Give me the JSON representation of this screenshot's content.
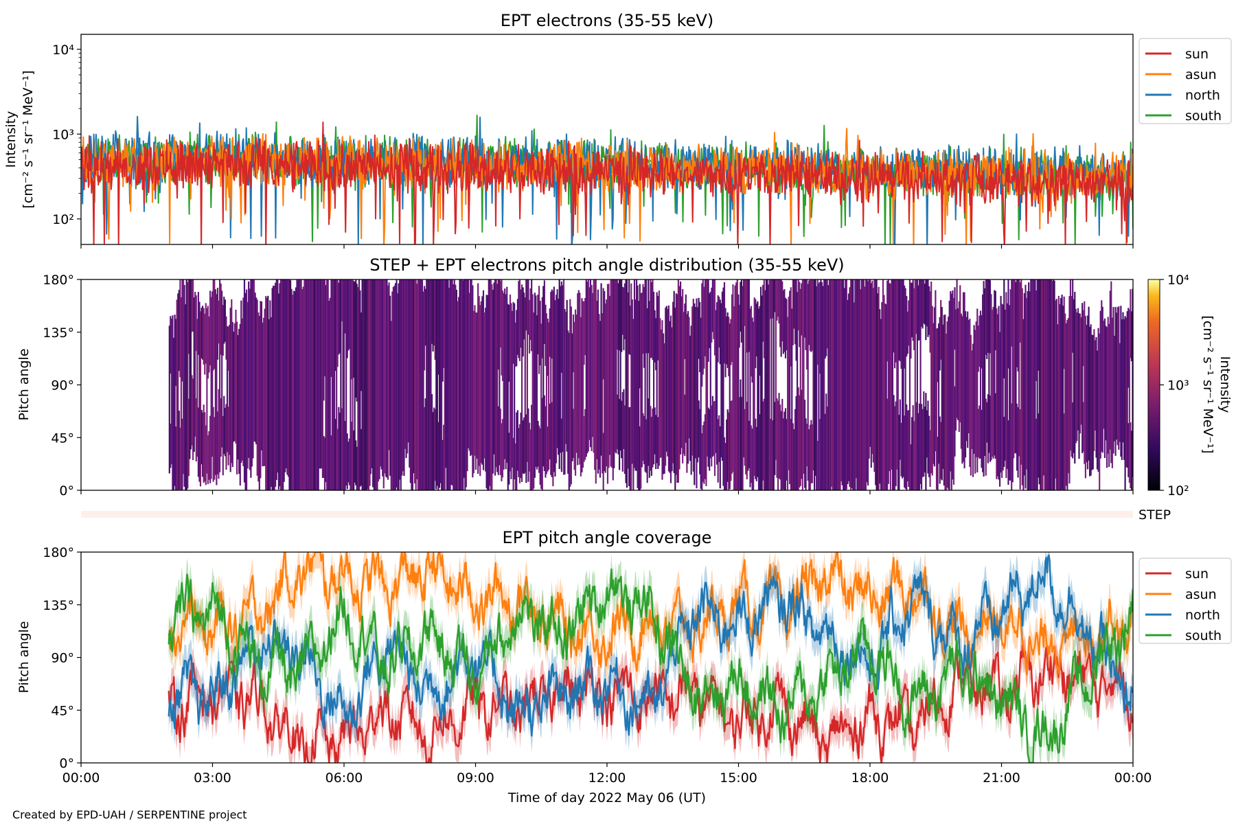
{
  "chart_data": [
    {
      "type": "line",
      "title": "EPT electrons (35-55 keV)",
      "ylabel_line1": "Intensity",
      "ylabel_line2": "[cm⁻² s⁻¹ sr⁻¹ MeV⁻¹]",
      "yscale": "log",
      "ylim": [
        50,
        15000
      ],
      "xlim": [
        0,
        24
      ],
      "yticks": [
        {
          "value": 100,
          "label": "10²"
        },
        {
          "value": 1000,
          "label": "10³"
        },
        {
          "value": 10000,
          "label": "10⁴"
        }
      ],
      "legend_position": "right, outside axes, top",
      "series": [
        {
          "name": "sun",
          "color": "#d62728",
          "values": [
            420,
            430,
            440,
            450,
            430,
            420,
            410,
            415,
            400,
            390,
            380,
            370,
            360,
            350,
            340,
            330,
            320,
            310,
            300,
            300,
            290,
            280,
            270,
            265,
            260
          ]
        },
        {
          "name": "asun",
          "color": "#ff7f0e",
          "values": [
            460,
            470,
            480,
            500,
            480,
            470,
            460,
            450,
            440,
            430,
            420,
            410,
            400,
            395,
            390,
            380,
            370,
            360,
            350,
            340,
            330,
            320,
            320,
            310,
            300
          ]
        },
        {
          "name": "north",
          "color": "#1f77b4",
          "values": [
            500,
            510,
            520,
            540,
            520,
            510,
            500,
            490,
            480,
            475,
            470,
            460,
            450,
            440,
            430,
            420,
            410,
            400,
            390,
            380,
            370,
            360,
            355,
            350,
            340
          ]
        },
        {
          "name": "south",
          "color": "#2ca02c",
          "values": [
            480,
            490,
            500,
            520,
            500,
            490,
            480,
            470,
            460,
            455,
            450,
            440,
            430,
            420,
            410,
            400,
            390,
            380,
            370,
            360,
            350,
            340,
            335,
            330,
            320
          ]
        }
      ],
      "x_hours": [
        0,
        1,
        2,
        3,
        4,
        5,
        6,
        7,
        8,
        9,
        10,
        11,
        12,
        13,
        14,
        15,
        16,
        17,
        18,
        19,
        20,
        21,
        22,
        23,
        24
      ]
    },
    {
      "type": "heatmap",
      "title": "STEP + EPT electrons pitch angle distribution (35-55 keV)",
      "ylabel": "Pitch angle",
      "ylim": [
        0,
        180
      ],
      "yticks": [
        "0°",
        "45°",
        "90°",
        "135°",
        "180°"
      ],
      "xlim": [
        0,
        24
      ],
      "data_start_hour": 2.0,
      "colorbar": {
        "label_line1": "Intensity",
        "label_line2": "[cm⁻² s⁻¹ sr⁻¹ MeV⁻¹]",
        "scale": "log",
        "range": [
          100,
          10000
        ],
        "ticks": [
          "10²",
          "10³",
          "10⁴"
        ],
        "colormap": "inferno"
      },
      "typical_intensity": 350
    },
    {
      "type": "bar",
      "label": "STEP",
      "color": "#fdf0ea",
      "xlim": [
        0,
        24
      ]
    },
    {
      "type": "line",
      "title": "EPT pitch angle coverage",
      "ylabel": "Pitch angle",
      "ylim": [
        0,
        180
      ],
      "yticks": [
        "0°",
        "45°",
        "90°",
        "135°",
        "180°"
      ],
      "xlim": [
        0,
        24
      ],
      "xticks": [
        "00:00",
        "03:00",
        "06:00",
        "09:00",
        "12:00",
        "15:00",
        "18:00",
        "21:00",
        "00:00"
      ],
      "xlabel": "Time of day 2022 May 06 (UT)",
      "legend_position": "right, outside axes, top",
      "series": [
        {
          "name": "sun",
          "color": "#d62728",
          "x_hours": [
            2,
            3,
            4,
            5,
            6,
            7,
            8,
            9,
            10,
            11,
            12,
            13,
            14,
            15,
            16,
            17,
            18,
            19,
            20,
            21,
            22,
            23,
            24
          ],
          "values": [
            50,
            60,
            55,
            15,
            20,
            45,
            25,
            50,
            45,
            65,
            60,
            55,
            60,
            35,
            50,
            15,
            40,
            30,
            70,
            60,
            80,
            70,
            65
          ]
        },
        {
          "name": "asun",
          "color": "#ff7f0e",
          "x_hours": [
            2,
            3,
            4,
            5,
            6,
            7,
            8,
            9,
            10,
            11,
            12,
            13,
            14,
            15,
            16,
            17,
            18,
            19,
            20,
            21,
            22,
            23,
            24
          ],
          "values": [
            120,
            115,
            125,
            165,
            160,
            150,
            165,
            140,
            140,
            115,
            110,
            120,
            115,
            135,
            130,
            160,
            140,
            150,
            110,
            120,
            100,
            115,
            120
          ]
        },
        {
          "name": "north",
          "color": "#1f77b4",
          "x_hours": [
            2,
            3,
            4,
            5,
            6,
            7,
            8,
            9,
            10,
            11,
            12,
            13,
            14,
            15,
            16,
            17,
            18,
            19,
            20,
            21,
            22,
            23,
            24
          ],
          "values": [
            60,
            55,
            100,
            95,
            40,
            100,
            60,
            95,
            40,
            60,
            70,
            45,
            130,
            120,
            140,
            110,
            85,
            140,
            100,
            130,
            160,
            110,
            50
          ]
        },
        {
          "name": "south",
          "color": "#2ca02c",
          "x_hours": [
            2,
            3,
            4,
            5,
            6,
            7,
            8,
            9,
            10,
            11,
            12,
            13,
            14,
            15,
            16,
            17,
            18,
            19,
            20,
            21,
            22,
            23,
            24
          ],
          "values": [
            125,
            130,
            85,
            75,
            130,
            85,
            110,
            75,
            130,
            110,
            150,
            130,
            60,
            70,
            45,
            70,
            100,
            50,
            80,
            55,
            20,
            75,
            130
          ]
        }
      ]
    }
  ],
  "credit": "Created by EPD-UAH / SERPENTINE project"
}
